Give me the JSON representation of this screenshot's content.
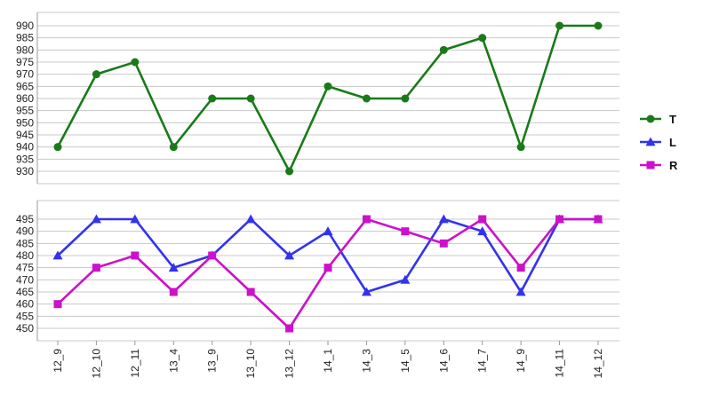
{
  "chart_data": {
    "type": "line",
    "categories": [
      "12_9",
      "12_10",
      "12_11",
      "13_4",
      "13_9",
      "13_10",
      "13_12",
      "14_1",
      "14_3",
      "14_5",
      "14_6",
      "14_7",
      "14_9",
      "14_11",
      "14_12"
    ],
    "panels": [
      {
        "ylim": [
          925,
          993
        ],
        "yticks": [
          930,
          935,
          940,
          945,
          950,
          955,
          960,
          965,
          970,
          975,
          980,
          985,
          990
        ],
        "series": [
          {
            "name": "T",
            "color": "#1a7a1a",
            "marker": "circle",
            "values": [
              940,
              970,
              975,
              940,
              960,
              960,
              930,
              965,
              960,
              960,
              980,
              985,
              940,
              990,
              990
            ]
          }
        ]
      },
      {
        "ylim": [
          445,
          498
        ],
        "yticks": [
          450,
          455,
          460,
          465,
          470,
          475,
          480,
          485,
          490,
          495
        ],
        "series": [
          {
            "name": "L",
            "color": "#3333ee",
            "marker": "triangle",
            "values": [
              480,
              495,
              495,
              475,
              480,
              495,
              480,
              490,
              465,
              470,
              495,
              490,
              465,
              495,
              495
            ]
          },
          {
            "name": "R",
            "color": "#cc11cc",
            "marker": "square",
            "values": [
              460,
              475,
              480,
              465,
              480,
              465,
              450,
              475,
              495,
              490,
              485,
              495,
              475,
              495,
              495
            ]
          }
        ]
      }
    ],
    "legend": {
      "placement": "right",
      "entries": [
        {
          "name": "T",
          "color": "#1a7a1a",
          "marker": "circle"
        },
        {
          "name": "L",
          "color": "#3333ee",
          "marker": "triangle"
        },
        {
          "name": "R",
          "color": "#cc11cc",
          "marker": "square"
        }
      ]
    },
    "grid": true
  }
}
